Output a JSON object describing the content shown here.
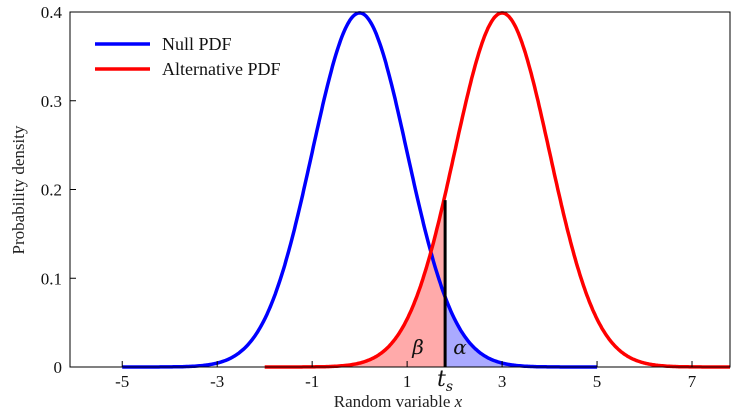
{
  "chart_data": {
    "type": "line",
    "xlabel_text": "Random variable",
    "xlabel_var": "x",
    "ylabel": "Probability density",
    "xlim": [
      -6.1,
      7.8
    ],
    "ylim": [
      0,
      0.4
    ],
    "xticks": [
      -5,
      -3,
      -1,
      1,
      3,
      5,
      7
    ],
    "yticks": [
      0,
      0.1,
      0.2,
      0.3,
      0.4
    ],
    "grid": false,
    "legend_placement": "top-left",
    "series": [
      {
        "name": "Null PDF",
        "color": "#0000ff",
        "distribution": "normal",
        "mean": 0,
        "sd": 1,
        "x_range": [
          -5,
          5
        ],
        "shaded_from": 1.8,
        "shaded_to": 5,
        "fill_color": "#aaaaff"
      },
      {
        "name": "Alternative PDF",
        "color": "#ff0000",
        "distribution": "normal",
        "mean": 3,
        "sd": 1,
        "x_range": [
          -2,
          7.8
        ],
        "shaded_from": -2,
        "shaded_to": 1.8,
        "fill_color": "#ffaaaa"
      }
    ],
    "threshold": {
      "x": 1.8,
      "top": 0.188,
      "label_main": "t",
      "label_sub": "s"
    },
    "annotations": {
      "beta": "β",
      "alpha": "α"
    }
  }
}
